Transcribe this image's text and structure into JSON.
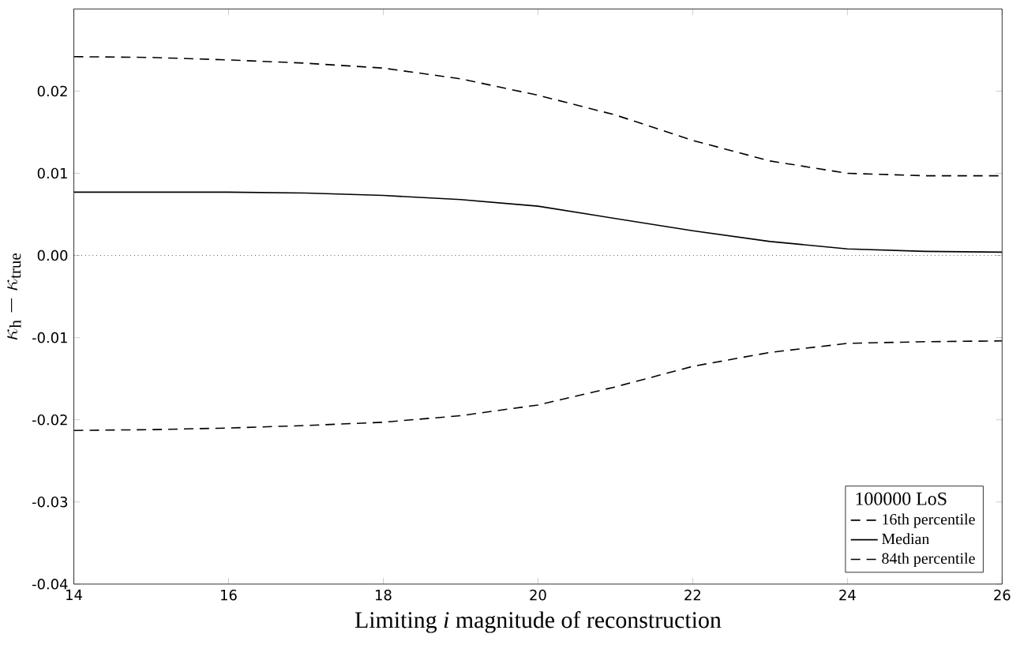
{
  "chart_data": {
    "type": "line",
    "xlabel": "Limiting *i* magnitude of reconstruction",
    "ylabel": "\\kappa_{\\rm h} - \\kappa_{\\rm true}",
    "legend_title": "100000 LoS",
    "legend": "bottom right",
    "grid": false,
    "marker": "none",
    "xlim": [
      14,
      26
    ],
    "ylim": [
      -0.04,
      0.03
    ],
    "xticks": [
      14,
      16,
      18,
      20,
      22,
      24,
      26
    ],
    "yticks": [
      {
        "value": -0.04,
        "label": "-0.04"
      },
      {
        "value": -0.03,
        "label": "-0.03"
      },
      {
        "value": -0.02,
        "label": "-0.02"
      },
      {
        "value": -0.01,
        "label": "-0.01"
      },
      {
        "value": 0,
        "label": "0.00"
      },
      {
        "value": 0.01,
        "label": "0.01"
      },
      {
        "value": 0.02,
        "label": "0.02"
      }
    ],
    "ref_lines": [
      {
        "axis": "y",
        "value": 0,
        "color": "#000000",
        "line_style": "dotted"
      }
    ],
    "x": [
      14,
      15,
      16,
      17,
      18,
      19,
      20,
      21,
      22,
      23,
      24,
      25,
      26
    ],
    "series": [
      {
        "name": "16th percentile",
        "color": "#000000",
        "line_style": "dashed",
        "values": [
          -0.0213,
          -0.0212,
          -0.021,
          -0.0207,
          -0.0203,
          -0.0195,
          -0.0182,
          -0.016,
          -0.0135,
          -0.0118,
          -0.0107,
          -0.0105,
          -0.0104
        ]
      },
      {
        "name": "Median",
        "color": "#000000",
        "line_style": "solid",
        "values": [
          0.0077,
          0.0077,
          0.0077,
          0.0076,
          0.0073,
          0.0068,
          0.006,
          0.0045,
          0.003,
          0.0017,
          0.0008,
          0.0005,
          0.0004
        ]
      },
      {
        "name": "84th percentile",
        "color": "#000000",
        "line_style": "dashed",
        "values": [
          0.0242,
          0.0241,
          0.0238,
          0.0234,
          0.0228,
          0.0215,
          0.0195,
          0.0171,
          0.014,
          0.0115,
          0.01,
          0.0097,
          0.0097
        ]
      }
    ]
  }
}
